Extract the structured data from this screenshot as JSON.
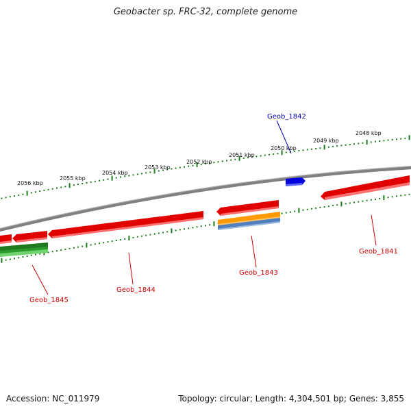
{
  "title": "Geobacter sp. FRC-32, complete genome",
  "footer": {
    "accession": "Accession: NC_011979",
    "summary": "Topology: circular; Length: 4,304,501 bp; Genes: 3,855"
  },
  "colors": {
    "backbone": "#808080",
    "tick": "#1a7a1a",
    "gene_red": "#e00000",
    "gene_blue": "#0000dd",
    "gene_green": "#2a9a2a",
    "gene_orange": "#ff9900",
    "gene_steel": "#4f7fbf",
    "label_red": "#cc0000",
    "label_blue": "#0000aa"
  },
  "ticks": {
    "outer": [
      "2048 kbp",
      "2049 kbp",
      "2050 kbp",
      "2051 kbp",
      "2052 kbp",
      "2053 kbp",
      "2054 kbp",
      "2055 kbp",
      "2056 kbp"
    ]
  },
  "genes": {
    "geob_1841": "Geob_1841",
    "geob_1842": "Geob_1842",
    "geob_1843": "Geob_1843",
    "geob_1844": "Geob_1844",
    "geob_1845": "Geob_1845"
  }
}
